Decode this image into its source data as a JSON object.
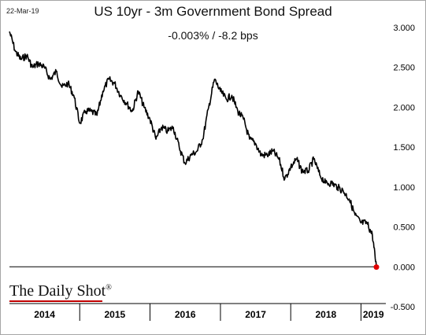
{
  "date_stamp": "22-Mar-19",
  "brand": {
    "name": "The Daily Shot",
    "mark": "®"
  },
  "chart_data": {
    "type": "line",
    "title": "US 10yr - 3m Government Bond Spread",
    "subtitle": "-0.003%  /  -8.2 bps",
    "xlabel": "",
    "ylabel": "",
    "ylim": [
      -0.5,
      3.0
    ],
    "xlim": [
      "2014-01-01",
      "2019-03-22"
    ],
    "y_ticks": [
      "3.000",
      "2.500",
      "2.000",
      "1.500",
      "1.000",
      "0.500",
      "0.000",
      "-0.500"
    ],
    "x_categories": [
      "2014",
      "2015",
      "2016",
      "2017",
      "2018",
      "2019"
    ],
    "axis_position": "right",
    "grid": false,
    "series": [
      {
        "name": "",
        "color": "#000000",
        "x": [
          "2014-01-01",
          "2014-02-01",
          "2014-03-01",
          "2014-04-01",
          "2014-05-01",
          "2014-06-01",
          "2014-07-01",
          "2014-08-01",
          "2014-09-01",
          "2014-10-01",
          "2014-11-01",
          "2014-12-01",
          "2015-01-01",
          "2015-02-01",
          "2015-03-01",
          "2015-04-01",
          "2015-05-01",
          "2015-06-01",
          "2015-07-01",
          "2015-08-01",
          "2015-09-01",
          "2015-10-01",
          "2015-11-01",
          "2015-12-01",
          "2016-01-01",
          "2016-02-01",
          "2016-03-01",
          "2016-04-01",
          "2016-05-01",
          "2016-06-01",
          "2016-07-01",
          "2016-08-01",
          "2016-09-01",
          "2016-10-01",
          "2016-11-01",
          "2016-12-01",
          "2017-01-01",
          "2017-02-01",
          "2017-03-01",
          "2017-04-01",
          "2017-05-01",
          "2017-06-01",
          "2017-07-01",
          "2017-08-01",
          "2017-09-01",
          "2017-10-01",
          "2017-11-01",
          "2017-12-01",
          "2018-01-01",
          "2018-02-01",
          "2018-03-01",
          "2018-04-01",
          "2018-05-01",
          "2018-06-01",
          "2018-07-01",
          "2018-08-01",
          "2018-09-01",
          "2018-10-01",
          "2018-11-01",
          "2018-12-01",
          "2019-01-01",
          "2019-02-01",
          "2019-03-01",
          "2019-03-22"
        ],
        "values": [
          2.95,
          2.7,
          2.6,
          2.65,
          2.5,
          2.55,
          2.5,
          2.35,
          2.45,
          2.25,
          2.3,
          2.15,
          1.8,
          1.95,
          1.95,
          1.9,
          2.2,
          2.35,
          2.3,
          2.15,
          2.05,
          1.95,
          2.2,
          2.0,
          1.85,
          1.6,
          1.75,
          1.7,
          1.75,
          1.5,
          1.3,
          1.4,
          1.45,
          1.6,
          2.0,
          2.35,
          2.2,
          2.1,
          2.15,
          1.95,
          1.85,
          1.6,
          1.55,
          1.4,
          1.4,
          1.45,
          1.35,
          1.1,
          1.25,
          1.35,
          1.2,
          1.2,
          1.35,
          1.15,
          1.05,
          1.05,
          1.0,
          0.95,
          0.85,
          0.65,
          0.55,
          0.55,
          0.4,
          -0.003
        ]
      }
    ],
    "end_marker": {
      "x": "2019-03-22",
      "y": -0.003,
      "color": "#e00000"
    }
  }
}
